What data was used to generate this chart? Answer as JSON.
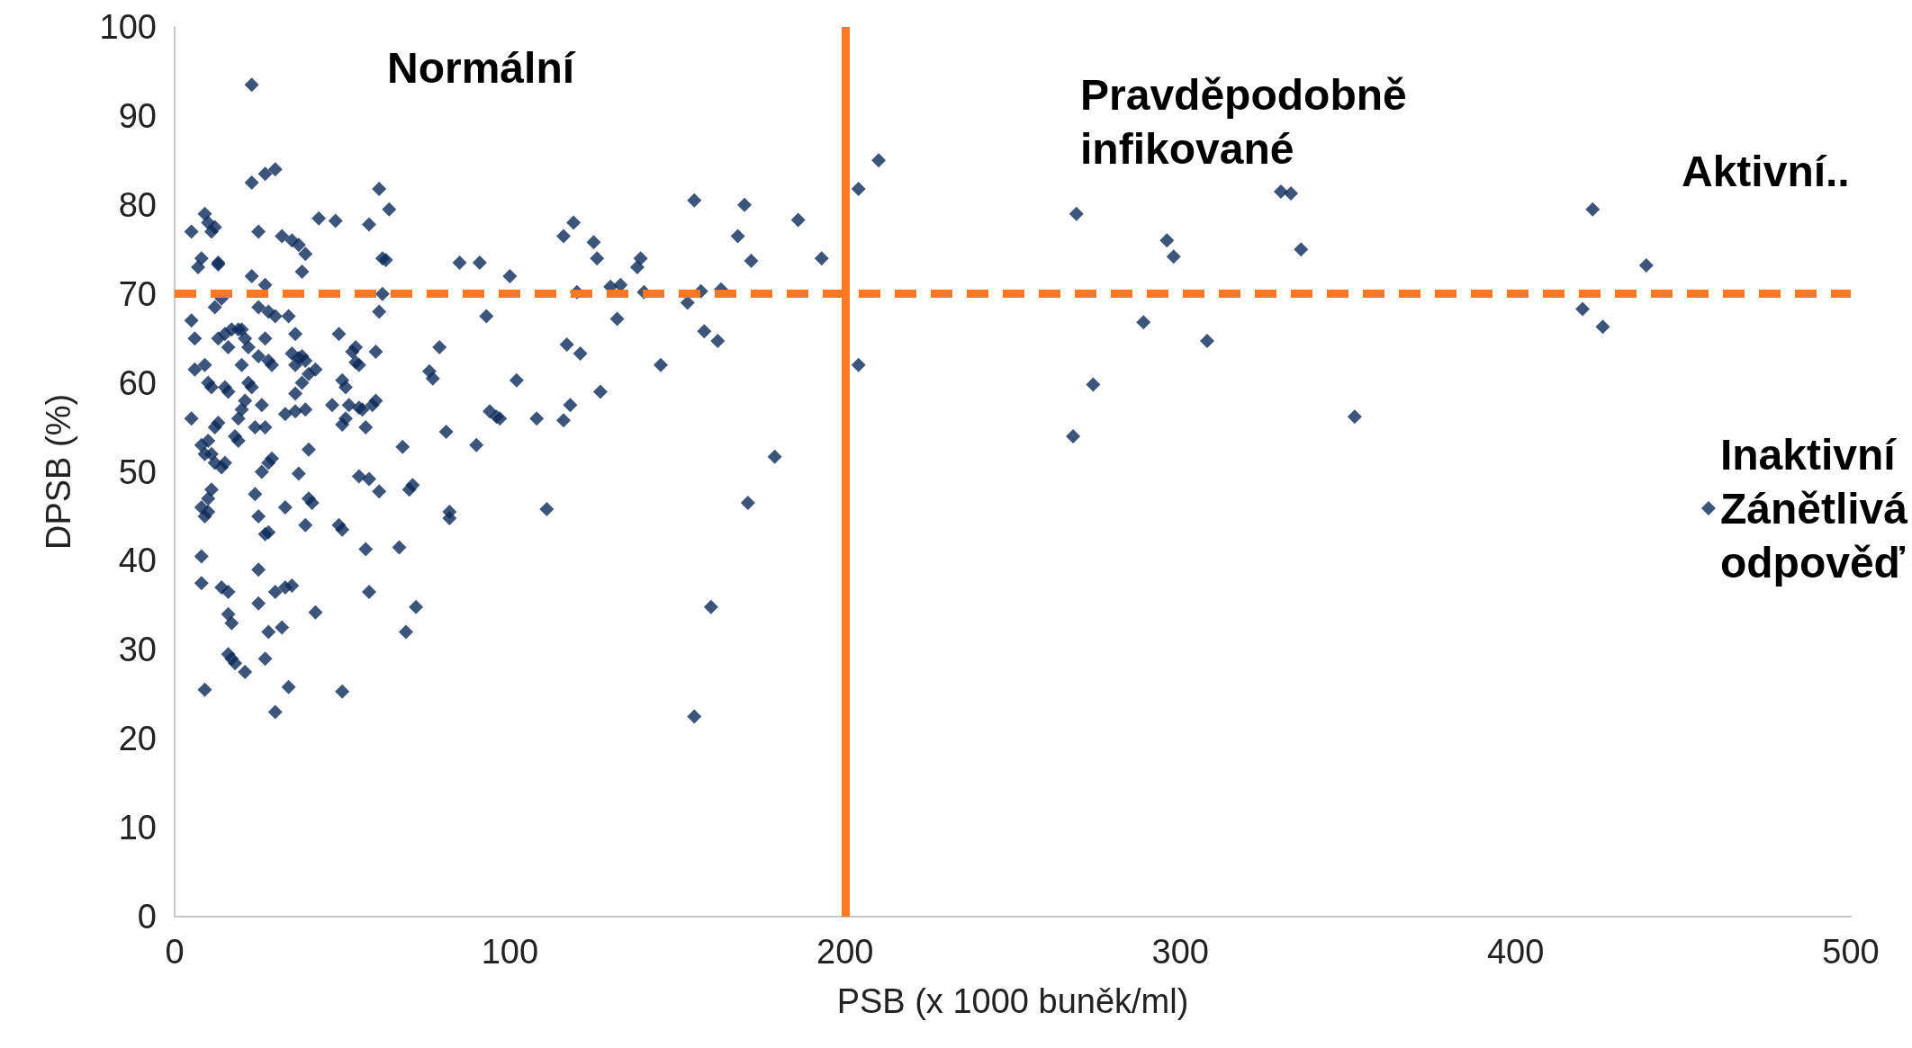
{
  "chart_data": {
    "type": "scatter",
    "xlabel": "PSB (x 1000 buněk/ml)",
    "ylabel": "DPSB (%)",
    "xlim": [
      0,
      500
    ],
    "xticks": [
      0,
      100,
      200,
      300,
      400,
      500
    ],
    "ylim": [
      0,
      100
    ],
    "yticks": [
      0,
      10,
      20,
      30,
      40,
      50,
      60,
      70,
      80,
      90,
      100
    ],
    "grid": false,
    "legend": "right",
    "marker": "diamond",
    "annotations": [
      "Normální",
      "Pravděpodobně infikované",
      "Aktivní.."
    ],
    "ref_lines": [
      {
        "axis": "x",
        "value": 200,
        "label": null,
        "color": "#ff7722",
        "line_style": "solid"
      },
      {
        "axis": "y",
        "value": 70,
        "label": null,
        "color": "#ff7722",
        "line_style": "dashed"
      }
    ],
    "series": [
      {
        "name": "Inaktivní Zánětlivá odpověď",
        "color": "#0d2b5a",
        "x": [
          5,
          7,
          5,
          6,
          6,
          5,
          8,
          9,
          10,
          11,
          12,
          13,
          9,
          10,
          11,
          8,
          9,
          10,
          11,
          12,
          8,
          9,
          10,
          10,
          11,
          8,
          8,
          9,
          12,
          13,
          14,
          15,
          13,
          12,
          14,
          13,
          15,
          16,
          17,
          15,
          16,
          14,
          16,
          16,
          17,
          16,
          17,
          18,
          18,
          19,
          19,
          20,
          20,
          20,
          21,
          22,
          22,
          21,
          19,
          23,
          23,
          25,
          27,
          30,
          23,
          25,
          27,
          28,
          30,
          25,
          27,
          28,
          29,
          23,
          24,
          26,
          27,
          28,
          29,
          26,
          24,
          25,
          27,
          28,
          25,
          25,
          27,
          28,
          30,
          21,
          30,
          32,
          34,
          33,
          35,
          33,
          32,
          35,
          37,
          39,
          38,
          34,
          36,
          35,
          37,
          38,
          39,
          38,
          40,
          36,
          36,
          39,
          37,
          40,
          40,
          39,
          41,
          42,
          33,
          36,
          43,
          48,
          42,
          47,
          50,
          51,
          49,
          53,
          54,
          55,
          51,
          50,
          52,
          55,
          56,
          59,
          60,
          57,
          55,
          58,
          49,
          50,
          57,
          58,
          50,
          54,
          58,
          61,
          62,
          63,
          64,
          61,
          62,
          60,
          61,
          67,
          68,
          69,
          70,
          71,
          72,
          76,
          77,
          79,
          81,
          82,
          82,
          85,
          91,
          93,
          90,
          94,
          96,
          97,
          100,
          102,
          108,
          111,
          116,
          119,
          116,
          117,
          118,
          121,
          120,
          125,
          126,
          127,
          130,
          132,
          133,
          138,
          139,
          140,
          145,
          153,
          155,
          157,
          158,
          162,
          163,
          168,
          170,
          172,
          171,
          160,
          155,
          179,
          186,
          193,
          204,
          204,
          210,
          268,
          269,
          274,
          289,
          296,
          298,
          308,
          330,
          333,
          336,
          352,
          420,
          423,
          426,
          439
        ],
        "values": [
          77,
          73,
          67,
          65,
          61.5,
          56,
          74,
          79,
          78,
          77,
          77.5,
          73.5,
          62,
          60,
          59.5,
          53,
          52,
          53.5,
          52,
          51,
          46,
          45,
          45.5,
          47,
          48,
          40.5,
          37.5,
          25.5,
          55,
          55.5,
          50.5,
          51,
          65,
          68.5,
          69.5,
          73.3,
          65.5,
          64,
          66,
          59.5,
          59,
          37,
          36.5,
          34,
          33,
          29.5,
          29,
          28.5,
          54,
          53.5,
          56,
          57,
          62,
          66,
          65,
          64,
          60,
          58,
          66,
          93.5,
          82.5,
          77,
          83.5,
          84,
          72,
          68.5,
          71,
          68,
          67.5,
          63,
          65,
          62.5,
          62,
          59.5,
          55,
          57.5,
          55,
          51,
          51.5,
          50,
          47.5,
          45,
          43,
          43.2,
          39,
          35.2,
          29,
          32,
          36.5,
          27.5,
          23,
          32.5,
          25.8,
          37,
          37.2,
          46,
          76.5,
          76,
          75.5,
          74.5,
          72.5,
          67.5,
          65.5,
          63.3,
          62.8,
          63,
          62.5,
          60,
          61,
          58.8,
          56.8,
          57,
          49.8,
          52.5,
          47,
          44,
          46.5,
          34.2,
          56.5,
          62,
          78.5,
          78.2,
          61.5,
          57.5,
          60.3,
          59.5,
          65.5,
          63.5,
          62.3,
          62,
          56,
          55.3,
          57.5,
          57.2,
          57,
          57.5,
          58,
          55,
          49.5,
          49.2,
          44,
          43.5,
          41.3,
          36.5,
          25.3,
          64,
          77.8,
          81.8,
          74,
          73.8,
          79.5,
          68,
          70,
          63.5,
          47.8,
          41.5,
          52.8,
          32,
          48,
          48.5,
          34.8,
          61.3,
          60.5,
          64,
          54.5,
          45.5,
          44.8,
          73.5,
          73.5,
          67.5,
          53,
          56.8,
          56.2,
          56,
          72,
          60.3,
          56,
          45.8,
          76.5,
          78,
          55.8,
          64.3,
          57.5,
          63.3,
          70.2,
          75.8,
          74,
          59,
          70.8,
          67.2,
          71,
          73,
          74,
          70.2,
          62,
          69,
          80.5,
          70.3,
          65.8,
          64.7,
          70.5,
          76.5,
          80,
          73.7,
          46.5,
          34.8,
          22.5,
          51.7,
          78.3,
          74,
          81.8,
          62,
          85,
          54,
          79,
          59.8,
          66.8,
          76,
          74.2,
          64.7,
          81.5,
          81.3,
          75,
          56.2,
          68.3,
          79.5,
          66.3,
          73.2
        ]
      }
    ]
  }
}
